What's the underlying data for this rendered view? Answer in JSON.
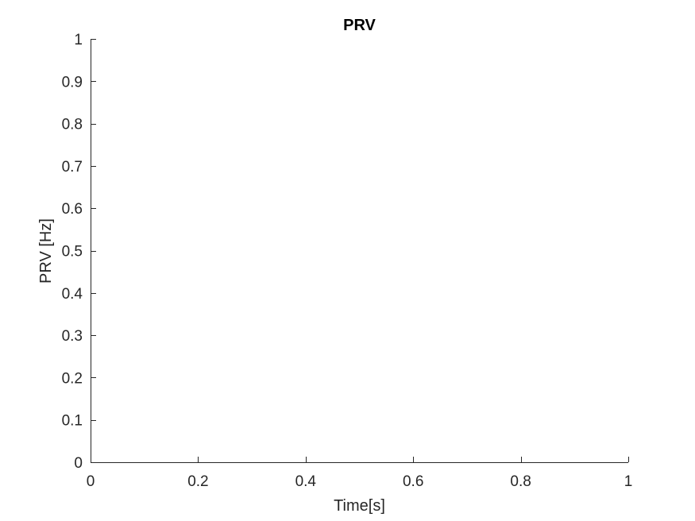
{
  "chart_data": {
    "type": "line",
    "title": "PRV",
    "xlabel": "Time[s]",
    "ylabel": "PRV [Hz]",
    "xlim": [
      0,
      1
    ],
    "ylim": [
      0,
      1
    ],
    "xticks": [
      0,
      0.2,
      0.4,
      0.6,
      0.8,
      1
    ],
    "xtick_labels": [
      "0",
      "0.2",
      "0.4",
      "0.6",
      "0.8",
      "1"
    ],
    "yticks": [
      0,
      0.1,
      0.2,
      0.3,
      0.4,
      0.5,
      0.6,
      0.7,
      0.8,
      0.9,
      1
    ],
    "ytick_labels": [
      "0",
      "0.1",
      "0.2",
      "0.3",
      "0.4",
      "0.5",
      "0.6",
      "0.7",
      "0.8",
      "0.9",
      "1"
    ],
    "grid": false,
    "series": []
  }
}
